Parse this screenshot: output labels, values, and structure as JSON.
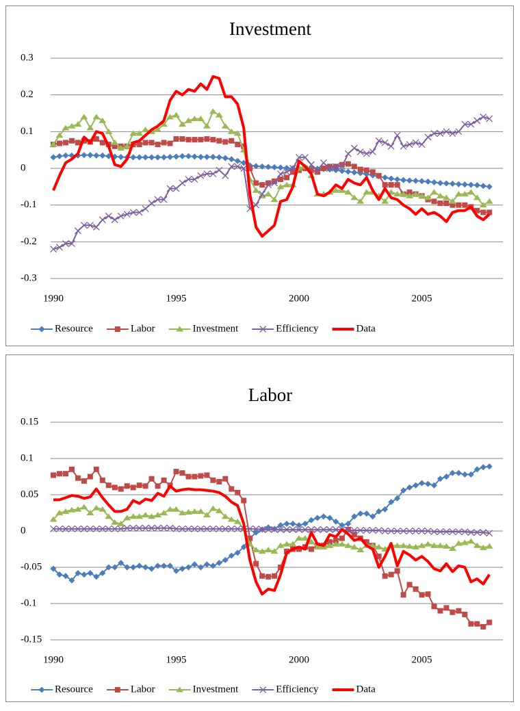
{
  "chart_data": [
    {
      "type": "line",
      "title": "Investment",
      "x": [
        1990,
        1990.25,
        1990.5,
        1990.75,
        1991,
        1991.25,
        1991.5,
        1991.75,
        1992,
        1992.25,
        1992.5,
        1992.75,
        1993,
        1993.25,
        1993.5,
        1993.75,
        1994,
        1994.25,
        1994.5,
        1994.75,
        1995,
        1995.25,
        1995.5,
        1995.75,
        1996,
        1996.25,
        1996.5,
        1996.75,
        1997,
        1997.25,
        1997.5,
        1997.75,
        1998,
        1998.25,
        1998.5,
        1998.75,
        1999,
        1999.25,
        1999.5,
        1999.75,
        2000,
        2000.25,
        2000.5,
        2000.75,
        2001,
        2001.25,
        2001.5,
        2001.75,
        2002,
        2002.25,
        2002.5,
        2002.75,
        2003,
        2003.25,
        2003.5,
        2003.75,
        2004,
        2004.25,
        2004.5,
        2004.75,
        2005,
        2005.25,
        2005.5,
        2005.75,
        2006,
        2006.25,
        2006.5,
        2006.75,
        2007,
        2007.25,
        2007.5,
        2007.75
      ],
      "series": [
        {
          "name": "Resource",
          "color": "#4a7ebb",
          "marker": "diamond",
          "line_width": 2,
          "values": [
            0.03,
            0.033,
            0.035,
            0.035,
            0.035,
            0.036,
            0.036,
            0.035,
            0.035,
            0.033,
            0.032,
            0.031,
            0.03,
            0.03,
            0.03,
            0.03,
            0.03,
            0.03,
            0.03,
            0.031,
            0.032,
            0.033,
            0.033,
            0.032,
            0.031,
            0.031,
            0.031,
            0.03,
            0.028,
            0.025,
            0.02,
            0.015,
            0.008,
            0.006,
            0.005,
            0.004,
            0.003,
            0.002,
            0.001,
            0,
            0,
            0,
            0,
            -0.001,
            -0.002,
            -0.003,
            -0.005,
            -0.007,
            -0.009,
            -0.011,
            -0.013,
            -0.016,
            -0.019,
            -0.022,
            -0.025,
            -0.028,
            -0.03,
            -0.032,
            -0.033,
            -0.034,
            -0.035,
            -0.036,
            -0.038,
            -0.04,
            -0.041,
            -0.042,
            -0.043,
            -0.044,
            -0.045,
            -0.046,
            -0.048,
            -0.05
          ]
        },
        {
          "name": "Labor",
          "color": "#be4b48",
          "marker": "square",
          "line_width": 2,
          "values": [
            0.065,
            0.068,
            0.07,
            0.075,
            0.07,
            0.075,
            0.072,
            0.08,
            0.07,
            0.065,
            0.06,
            0.06,
            0.06,
            0.065,
            0.065,
            0.07,
            0.07,
            0.065,
            0.07,
            0.068,
            0.08,
            0.08,
            0.078,
            0.078,
            0.078,
            0.08,
            0.078,
            0.075,
            0.072,
            0.075,
            0.065,
            0.06,
            0,
            -0.04,
            -0.045,
            -0.04,
            -0.035,
            -0.03,
            -0.025,
            -0.01,
            -0.005,
            0,
            -0.005,
            -0.01,
            0,
            0.005,
            0.005,
            0.01,
            0.012,
            0.005,
            -0.003,
            -0.005,
            -0.01,
            -0.02,
            -0.045,
            -0.045,
            -0.045,
            -0.07,
            -0.065,
            -0.07,
            -0.075,
            -0.085,
            -0.09,
            -0.095,
            -0.095,
            -0.1,
            -0.1,
            -0.1,
            -0.105,
            -0.115,
            -0.12,
            -0.12
          ]
        },
        {
          "name": "Investment",
          "color": "#98b954",
          "marker": "triangle",
          "line_width": 2,
          "values": [
            0.065,
            0.09,
            0.11,
            0.115,
            0.12,
            0.14,
            0.11,
            0.14,
            0.13,
            0.1,
            0.07,
            0.055,
            0.06,
            0.095,
            0.095,
            0.105,
            0.1,
            0.105,
            0.12,
            0.14,
            0.145,
            0.12,
            0.13,
            0.135,
            0.135,
            0.115,
            0.155,
            0.145,
            0.115,
            0.1,
            0.095,
            0.05,
            -0.03,
            -0.06,
            -0.075,
            -0.07,
            -0.085,
            -0.05,
            -0.045,
            -0.045,
            0,
            0.005,
            -0.02,
            -0.07,
            -0.07,
            -0.065,
            -0.06,
            -0.06,
            -0.065,
            -0.08,
            -0.09,
            -0.065,
            -0.065,
            -0.075,
            -0.09,
            -0.065,
            -0.07,
            -0.07,
            -0.075,
            -0.07,
            -0.075,
            -0.08,
            -0.065,
            -0.075,
            -0.08,
            -0.09,
            -0.07,
            -0.07,
            -0.065,
            -0.08,
            -0.1,
            -0.09
          ]
        },
        {
          "name": "Efficiency",
          "color": "#7d60a0",
          "marker": "x",
          "line_width": 2,
          "values": [
            -0.22,
            -0.215,
            -0.205,
            -0.205,
            -0.17,
            -0.155,
            -0.155,
            -0.16,
            -0.14,
            -0.13,
            -0.14,
            -0.13,
            -0.125,
            -0.12,
            -0.12,
            -0.11,
            -0.095,
            -0.085,
            -0.085,
            -0.055,
            -0.055,
            -0.04,
            -0.03,
            -0.03,
            -0.02,
            -0.015,
            -0.015,
            -0.005,
            -0.02,
            0.005,
            0.005,
            0,
            -0.11,
            -0.1,
            -0.07,
            -0.045,
            -0.04,
            -0.015,
            -0.01,
            0,
            0.03,
            0.03,
            0.01,
            -0.005,
            0.015,
            0,
            0.005,
            0.005,
            0.04,
            0.055,
            0.045,
            0.04,
            0.045,
            0.075,
            0.07,
            0.06,
            0.09,
            0.06,
            0.065,
            0.07,
            0.065,
            0.085,
            0.095,
            0.095,
            0.1,
            0.095,
            0.1,
            0.12,
            0.12,
            0.13,
            0.14,
            0.135
          ]
        },
        {
          "name": "Data",
          "color": "#ff0000",
          "marker": "none",
          "line_width": 4,
          "values": [
            -0.06,
            -0.02,
            0.015,
            0.025,
            0.04,
            0.085,
            0.07,
            0.1,
            0.095,
            0.06,
            0.01,
            0.005,
            0.025,
            0.07,
            0.075,
            0.09,
            0.105,
            0.115,
            0.13,
            0.185,
            0.21,
            0.2,
            0.215,
            0.21,
            0.23,
            0.215,
            0.25,
            0.245,
            0.195,
            0.195,
            0.175,
            0.11,
            -0.07,
            -0.16,
            -0.185,
            -0.17,
            -0.155,
            -0.09,
            -0.085,
            -0.05,
            0.02,
            0.005,
            -0.015,
            -0.07,
            -0.075,
            -0.065,
            -0.045,
            -0.055,
            -0.03,
            -0.04,
            -0.045,
            -0.025,
            -0.06,
            -0.085,
            -0.055,
            -0.08,
            -0.085,
            -0.1,
            -0.11,
            -0.125,
            -0.11,
            -0.125,
            -0.12,
            -0.13,
            -0.145,
            -0.12,
            -0.115,
            -0.115,
            -0.105,
            -0.13,
            -0.14,
            -0.125
          ]
        }
      ],
      "xlim": [
        1990,
        2008.3
      ],
      "xticks": [
        1990,
        1995,
        2000,
        2005
      ],
      "ylim": [
        -0.3,
        0.3
      ],
      "yticks": [
        0.3,
        0.2,
        0.1,
        0,
        -0.1,
        -0.2,
        -0.3
      ],
      "grid": true,
      "legend": "bottom"
    },
    {
      "type": "line",
      "title": "Labor",
      "x": [
        1990,
        1990.25,
        1990.5,
        1990.75,
        1991,
        1991.25,
        1991.5,
        1991.75,
        1992,
        1992.25,
        1992.5,
        1992.75,
        1993,
        1993.25,
        1993.5,
        1993.75,
        1994,
        1994.25,
        1994.5,
        1994.75,
        1995,
        1995.25,
        1995.5,
        1995.75,
        1996,
        1996.25,
        1996.5,
        1996.75,
        1997,
        1997.25,
        1997.5,
        1997.75,
        1998,
        1998.25,
        1998.5,
        1998.75,
        1999,
        1999.25,
        1999.5,
        1999.75,
        2000,
        2000.25,
        2000.5,
        2000.75,
        2001,
        2001.25,
        2001.5,
        2001.75,
        2002,
        2002.25,
        2002.5,
        2002.75,
        2003,
        2003.25,
        2003.5,
        2003.75,
        2004,
        2004.25,
        2004.5,
        2004.75,
        2005,
        2005.25,
        2005.5,
        2005.75,
        2006,
        2006.25,
        2006.5,
        2006.75,
        2007,
        2007.25,
        2007.5,
        2007.75
      ],
      "series": [
        {
          "name": "Resource",
          "color": "#4a7ebb",
          "marker": "diamond",
          "line_width": 2,
          "values": [
            -0.052,
            -0.06,
            -0.062,
            -0.068,
            -0.058,
            -0.06,
            -0.058,
            -0.063,
            -0.058,
            -0.05,
            -0.05,
            -0.044,
            -0.05,
            -0.05,
            -0.048,
            -0.05,
            -0.052,
            -0.048,
            -0.048,
            -0.048,
            -0.055,
            -0.052,
            -0.05,
            -0.046,
            -0.05,
            -0.046,
            -0.048,
            -0.044,
            -0.04,
            -0.034,
            -0.03,
            -0.022,
            -0.01,
            -0.002,
            0.002,
            0.005,
            0.003,
            0.008,
            0.01,
            0.01,
            0.008,
            0.01,
            0.015,
            0.018,
            0.02,
            0.018,
            0.013,
            0.008,
            0.01,
            0.02,
            0.024,
            0.024,
            0.02,
            0.027,
            0.03,
            0.04,
            0.045,
            0.056,
            0.06,
            0.063,
            0.066,
            0.065,
            0.063,
            0.072,
            0.075,
            0.08,
            0.08,
            0.078,
            0.078,
            0.085,
            0.088,
            0.089
          ]
        },
        {
          "name": "Labor",
          "color": "#be4b48",
          "marker": "square",
          "line_width": 2,
          "values": [
            0.077,
            0.079,
            0.079,
            0.085,
            0.073,
            0.069,
            0.075,
            0.085,
            0.07,
            0.063,
            0.06,
            0.058,
            0.062,
            0.06,
            0.063,
            0.062,
            0.072,
            0.062,
            0.07,
            0.063,
            0.082,
            0.08,
            0.075,
            0.075,
            0.076,
            0.077,
            0.07,
            0.068,
            0.072,
            0.058,
            0.053,
            0.042,
            -0.01,
            -0.045,
            -0.062,
            -0.063,
            -0.062,
            -0.05,
            -0.028,
            -0.025,
            -0.025,
            -0.022,
            -0.025,
            -0.02,
            -0.02,
            -0.015,
            -0.013,
            -0.01,
            0.002,
            -0.005,
            -0.01,
            -0.015,
            -0.02,
            -0.035,
            -0.062,
            -0.06,
            -0.055,
            -0.088,
            -0.074,
            -0.08,
            -0.088,
            -0.087,
            -0.104,
            -0.11,
            -0.106,
            -0.112,
            -0.11,
            -0.115,
            -0.128,
            -0.128,
            -0.132,
            -0.126
          ]
        },
        {
          "name": "Investment",
          "color": "#98b954",
          "marker": "triangle",
          "line_width": 2,
          "values": [
            0.016,
            0.025,
            0.027,
            0.029,
            0.03,
            0.033,
            0.025,
            0.032,
            0.03,
            0.02,
            0.012,
            0.01,
            0.018,
            0.02,
            0.02,
            0.022,
            0.02,
            0.022,
            0.025,
            0.03,
            0.03,
            0.025,
            0.026,
            0.027,
            0.027,
            0.022,
            0.031,
            0.028,
            0.02,
            0.016,
            0.013,
            0.003,
            -0.018,
            -0.026,
            -0.028,
            -0.026,
            -0.028,
            -0.02,
            -0.018,
            -0.018,
            -0.01,
            -0.01,
            -0.015,
            -0.022,
            -0.022,
            -0.02,
            -0.018,
            -0.018,
            -0.02,
            -0.022,
            -0.026,
            -0.02,
            -0.02,
            -0.022,
            -0.025,
            -0.02,
            -0.02,
            -0.02,
            -0.021,
            -0.022,
            -0.02,
            -0.018,
            -0.02,
            -0.02,
            -0.021,
            -0.024,
            -0.017,
            -0.016,
            -0.014,
            -0.02,
            -0.023,
            -0.021
          ]
        },
        {
          "name": "Efficiency",
          "color": "#7d60a0",
          "marker": "x",
          "line_width": 2,
          "values": [
            0.003,
            0.003,
            0.003,
            0.003,
            0.003,
            0.003,
            0.003,
            0.003,
            0.003,
            0.003,
            0.003,
            0.003,
            0.004,
            0.004,
            0.004,
            0.004,
            0.004,
            0.004,
            0.004,
            0.004,
            0.003,
            0.003,
            0.003,
            0.003,
            0.003,
            0.003,
            0.003,
            0.003,
            0.003,
            0.003,
            0.003,
            0.003,
            0.003,
            0.003,
            0.002,
            0.002,
            0.002,
            0.002,
            0.002,
            0.002,
            0.002,
            0.002,
            0.002,
            0.002,
            0.002,
            0.002,
            0.002,
            0.002,
            0.001,
            0.001,
            0.001,
            0.001,
            0.001,
            0.001,
            0,
            0,
            0,
            0,
            0,
            0,
            0,
            0,
            -0.001,
            -0.001,
            -0.001,
            -0.001,
            -0.001,
            -0.001,
            -0.002,
            -0.002,
            -0.002,
            -0.003
          ]
        },
        {
          "name": "Data",
          "color": "#ff0000",
          "marker": "none",
          "line_width": 4,
          "values": [
            0.043,
            0.043,
            0.046,
            0.049,
            0.048,
            0.045,
            0.047,
            0.058,
            0.046,
            0.036,
            0.027,
            0.027,
            0.03,
            0.042,
            0.038,
            0.044,
            0.042,
            0.052,
            0.048,
            0.062,
            0.055,
            0.057,
            0.058,
            0.057,
            0.057,
            0.056,
            0.055,
            0.053,
            0.048,
            0.04,
            0.035,
            0.01,
            -0.04,
            -0.07,
            -0.087,
            -0.08,
            -0.082,
            -0.06,
            -0.03,
            -0.025,
            -0.022,
            -0.025,
            -0.002,
            -0.018,
            -0.02,
            -0.005,
            -0.008,
            0.002,
            -0.004,
            -0.013,
            -0.01,
            -0.02,
            -0.025,
            -0.05,
            -0.035,
            -0.017,
            -0.048,
            -0.028,
            -0.033,
            -0.04,
            -0.035,
            -0.042,
            -0.052,
            -0.055,
            -0.045,
            -0.056,
            -0.048,
            -0.05,
            -0.07,
            -0.066,
            -0.073,
            -0.06
          ]
        }
      ],
      "xlim": [
        1990,
        2008.3
      ],
      "xticks": [
        1990,
        1995,
        2000,
        2005
      ],
      "ylim": [
        -0.15,
        0.15
      ],
      "yticks": [
        0.15,
        0.1,
        0.05,
        0,
        -0.05,
        -0.1,
        -0.15
      ],
      "grid": true,
      "legend": "bottom"
    }
  ]
}
